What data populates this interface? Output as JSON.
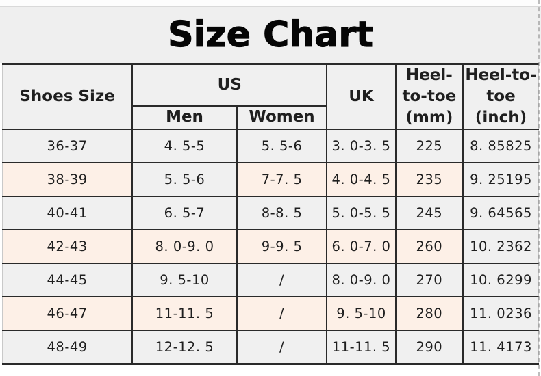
{
  "page_title": "Size Chart",
  "colors": {
    "cell_gray": "#f0f0f0",
    "cell_pink": "#fdf0e7",
    "grid_dark": "#2a2a2a",
    "grid_light": "#c9c9c9",
    "text": "#1f1f1f",
    "band_bg": "#efefef"
  },
  "table": {
    "headers": {
      "shoes_size": "Shoes Size",
      "us_group": "US",
      "us_men": "Men",
      "us_women": "Women",
      "uk": "UK",
      "heel_to_toe_mm": "Heel-\nto-toe\n(mm)",
      "heel_to_toe_inch": "Heel-to-\ntoe (inch)"
    },
    "rows": [
      {
        "shades": [
          "gray",
          "gray",
          "gray",
          "gray",
          "gray",
          "gray"
        ],
        "cells": [
          "36-37",
          "4. 5-5",
          "5. 5-6",
          "3. 0-3. 5",
          "225",
          "8. 85825"
        ]
      },
      {
        "shades": [
          "pink",
          "gray",
          "pink",
          "pink",
          "pink",
          "gray"
        ],
        "cells": [
          "38-39",
          "5. 5-6",
          "7-7. 5",
          "4. 0-4. 5",
          "235",
          "9. 25195"
        ]
      },
      {
        "shades": [
          "gray",
          "gray",
          "gray",
          "gray",
          "gray",
          "gray"
        ],
        "cells": [
          "40-41",
          "6. 5-7",
          "8-8. 5",
          "5. 0-5. 5",
          "245",
          "9. 64565"
        ]
      },
      {
        "shades": [
          "pink",
          "pink",
          "pink",
          "pink",
          "pink",
          "gray"
        ],
        "cells": [
          "42-43",
          "8. 0-9. 0",
          "9-9. 5",
          "6. 0-7. 0",
          "260",
          "10. 2362"
        ]
      },
      {
        "shades": [
          "gray",
          "gray",
          "gray",
          "gray",
          "gray",
          "gray"
        ],
        "cells": [
          "44-45",
          "9. 5-10",
          "/",
          "8. 0-9. 0",
          "270",
          "10. 6299"
        ]
      },
      {
        "shades": [
          "pink",
          "pink",
          "pink",
          "pink",
          "pink",
          "gray"
        ],
        "cells": [
          "46-47",
          "11-11. 5",
          "/",
          "9. 5-10",
          "280",
          "11. 0236"
        ]
      },
      {
        "shades": [
          "gray",
          "gray",
          "gray",
          "gray",
          "gray",
          "gray"
        ],
        "cells": [
          "48-49",
          "12-12. 5",
          "/",
          "11-11. 5",
          "290",
          "11. 4173"
        ]
      }
    ]
  }
}
